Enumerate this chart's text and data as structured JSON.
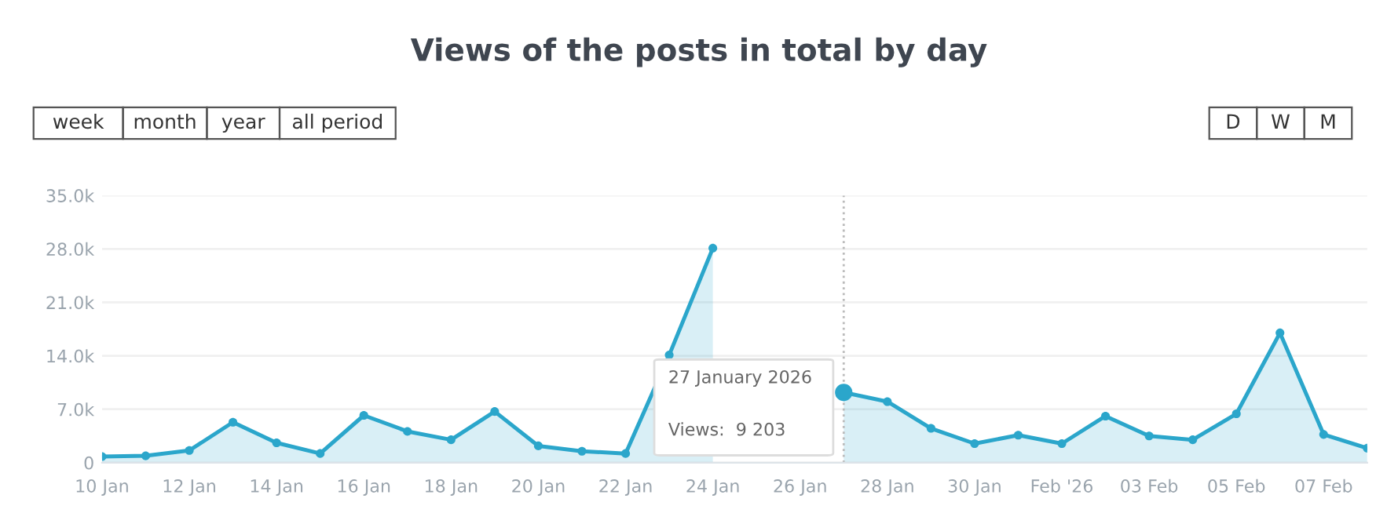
{
  "chart_data": {
    "type": "area",
    "title": "Views of the posts in total by day",
    "x": [
      "2026-01-10",
      "2026-01-11",
      "2026-01-12",
      "2026-01-13",
      "2026-01-14",
      "2026-01-15",
      "2026-01-16",
      "2026-01-17",
      "2026-01-18",
      "2026-01-19",
      "2026-01-20",
      "2026-01-21",
      "2026-01-22",
      "2026-01-23",
      "2026-01-24",
      "2026-01-25",
      "2026-01-26",
      "2026-01-27",
      "2026-01-28",
      "2026-01-29",
      "2026-01-30",
      "2026-01-31",
      "2026-02-01",
      "2026-02-02",
      "2026-02-03",
      "2026-02-04",
      "2026-02-05",
      "2026-02-06",
      "2026-02-07",
      "2026-02-08"
    ],
    "series": [
      {
        "color": "#2ba6cb",
        "values": [
          800,
          900,
          1600,
          5300,
          2600,
          1200,
          6200,
          4100,
          3000,
          6700,
          2200,
          1500,
          1200,
          14100,
          28100,
          null,
          null,
          9203,
          8000,
          4500,
          2500,
          3600,
          2500,
          6100,
          3500,
          3000,
          6400,
          17000,
          3700,
          1900
        ]
      }
    ],
    "xlim": [
      "2026-01-10",
      "2026-02-08"
    ],
    "xticks": [
      {
        "value": "2026-01-10",
        "label": "10 Jan"
      },
      {
        "value": "2026-01-12",
        "label": "12 Jan"
      },
      {
        "value": "2026-01-14",
        "label": "14 Jan"
      },
      {
        "value": "2026-01-16",
        "label": "16 Jan"
      },
      {
        "value": "2026-01-18",
        "label": "18 Jan"
      },
      {
        "value": "2026-01-20",
        "label": "20 Jan"
      },
      {
        "value": "2026-01-22",
        "label": "22 Jan"
      },
      {
        "value": "2026-01-24",
        "label": "24 Jan"
      },
      {
        "value": "2026-01-26",
        "label": "26 Jan"
      },
      {
        "value": "2026-01-28",
        "label": "28 Jan"
      },
      {
        "value": "2026-01-30",
        "label": "30 Jan"
      },
      {
        "value": "2026-02-01",
        "label": "Feb '26"
      },
      {
        "value": "2026-02-03",
        "label": "03 Feb"
      },
      {
        "value": "2026-02-05",
        "label": "05 Feb"
      },
      {
        "value": "2026-02-07",
        "label": "07 Feb"
      }
    ],
    "ylim": [
      0,
      35000
    ],
    "yticks": [
      0,
      {
        "value": 7000,
        "label": "7.0k"
      },
      {
        "value": 14000,
        "label": "14.0k"
      },
      {
        "value": 21000,
        "label": "21.0k"
      },
      {
        "value": 28000,
        "label": "28.0k"
      },
      {
        "value": 35000,
        "label": "35.0k"
      }
    ],
    "grid": "y",
    "marker": "circle",
    "line_style": "solid",
    "ref_lines": [
      {
        "axis": "x",
        "value": "2026-01-27",
        "color": "#bbbbbb",
        "line_style": "dotted"
      }
    ],
    "annotations": [
      "27 January 2026",
      "Views:  9 203",
      "week",
      "month",
      "year",
      "all period",
      "D",
      "W",
      "M"
    ]
  }
}
